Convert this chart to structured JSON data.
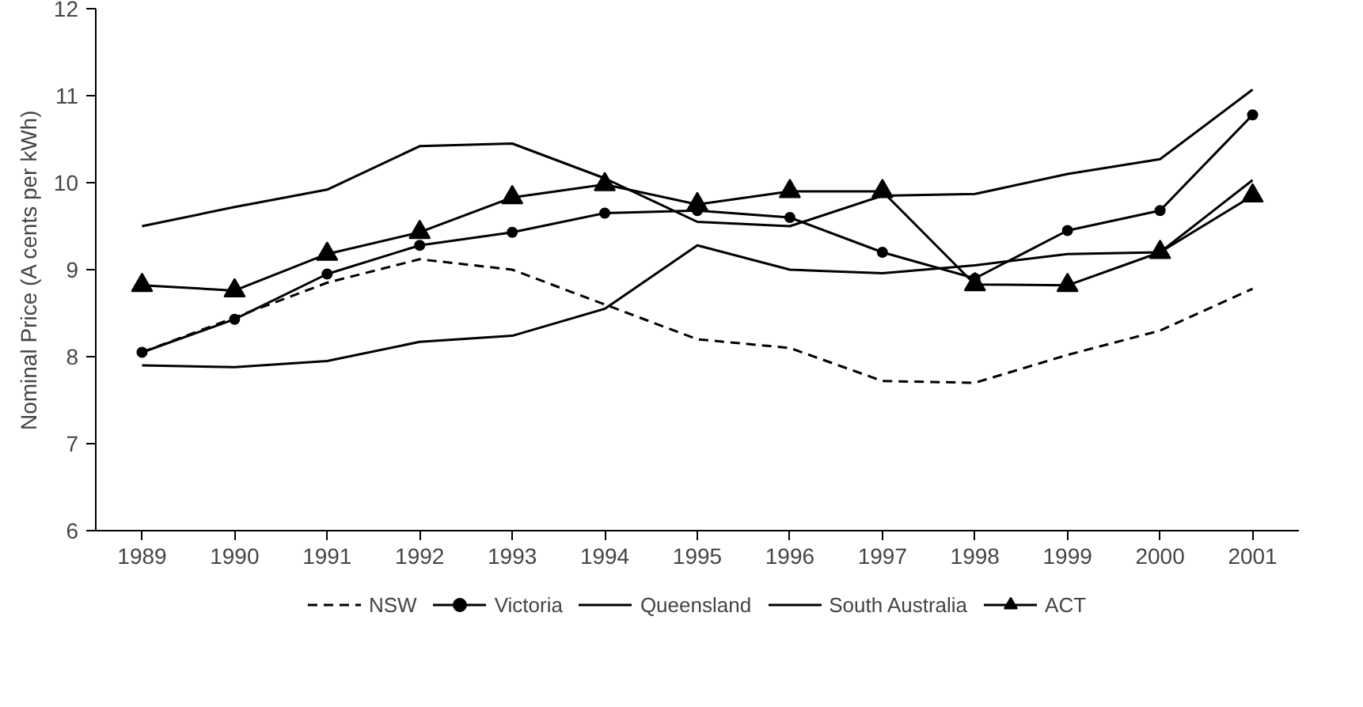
{
  "chart_data": {
    "type": "line",
    "ylabel": "Nominal Price (A cents per kWh)",
    "categories": [
      "1989",
      "1990",
      "1991",
      "1992",
      "1993",
      "1994",
      "1995",
      "1996",
      "1997",
      "1998",
      "1999",
      "2000",
      "2001"
    ],
    "ylim": [
      6,
      12
    ],
    "yticks": [
      6,
      7,
      8,
      9,
      10,
      11,
      12
    ],
    "grid": false,
    "legend": "bottom",
    "series": [
      {
        "name": "NSW",
        "color": "#000000",
        "line_style": "dashed",
        "marker": "none",
        "values": [
          8.05,
          8.45,
          8.85,
          9.12,
          9.0,
          8.6,
          8.2,
          8.1,
          7.72,
          7.7,
          8.02,
          8.3,
          8.78
        ]
      },
      {
        "name": "Victoria",
        "color": "#000000",
        "line_style": "solid",
        "marker": "circle",
        "values": [
          8.05,
          8.43,
          8.95,
          9.28,
          9.43,
          9.65,
          9.68,
          9.6,
          9.2,
          8.9,
          9.45,
          9.68,
          10.78
        ]
      },
      {
        "name": "Queensland",
        "color": "#000000",
        "line_style": "solid",
        "marker": "none",
        "values": [
          7.9,
          7.88,
          7.95,
          8.17,
          8.24,
          8.55,
          9.28,
          9.0,
          8.96,
          9.05,
          9.18,
          9.2,
          10.03
        ]
      },
      {
        "name": "South Australia",
        "color": "#000000",
        "line_style": "solid",
        "marker": "none",
        "values": [
          9.5,
          9.72,
          9.92,
          10.42,
          10.45,
          10.05,
          9.55,
          9.5,
          9.85,
          9.87,
          10.1,
          10.27,
          11.07
        ]
      },
      {
        "name": "ACT",
        "color": "#000000",
        "line_style": "solid",
        "marker": "triangle",
        "values": [
          8.82,
          8.76,
          9.18,
          9.43,
          9.83,
          9.98,
          9.75,
          9.9,
          9.9,
          8.83,
          8.82,
          9.2,
          9.85
        ]
      }
    ]
  }
}
